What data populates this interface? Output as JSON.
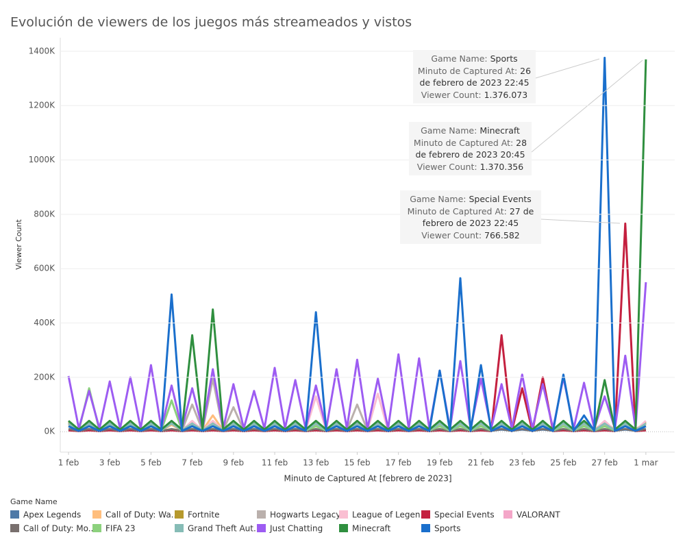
{
  "chart_data": {
    "type": "line",
    "title": "Evolución de viewers de los juegos más streameados y vistos",
    "x_label": "Minuto de Captured At [febrero de 2023]",
    "y_label": "Viewer Count",
    "legend_title": "Game Name",
    "xlim": [
      0.6,
      30.4
    ],
    "xticks": [
      {
        "value": 1,
        "label": "1 feb"
      },
      {
        "value": 3,
        "label": "3 feb"
      },
      {
        "value": 5,
        "label": "5 feb"
      },
      {
        "value": 7,
        "label": "7 feb"
      },
      {
        "value": 9,
        "label": "9 feb"
      },
      {
        "value": 11,
        "label": "11 feb"
      },
      {
        "value": 13,
        "label": "13 feb"
      },
      {
        "value": 15,
        "label": "15 feb"
      },
      {
        "value": 17,
        "label": "17 feb"
      },
      {
        "value": 19,
        "label": "19 feb"
      },
      {
        "value": 21,
        "label": "21 feb"
      },
      {
        "value": 23,
        "label": "23 feb"
      },
      {
        "value": 25,
        "label": "25 feb"
      },
      {
        "value": 27,
        "label": "27 feb"
      },
      {
        "value": 29,
        "label": "1 mar"
      }
    ],
    "ylim": [
      -75,
      1450
    ],
    "yticks": [
      {
        "value": 0,
        "label": "0K"
      },
      {
        "value": 200,
        "label": "200K"
      },
      {
        "value": 400,
        "label": "400K"
      },
      {
        "value": 600,
        "label": "600K"
      },
      {
        "value": 800,
        "label": "800K"
      },
      {
        "value": 1000,
        "label": "1000K"
      },
      {
        "value": 1200,
        "label": "1200K"
      },
      {
        "value": 1400,
        "label": "1400K"
      }
    ],
    "grid": true,
    "x": [
      1,
      1.5,
      2,
      2.5,
      3,
      3.5,
      4,
      4.5,
      5,
      5.5,
      6,
      6.5,
      7,
      7.5,
      8,
      8.5,
      9,
      9.5,
      10,
      10.5,
      11,
      11.5,
      12,
      12.5,
      13,
      13.5,
      14,
      14.5,
      15,
      15.5,
      16,
      16.5,
      17,
      17.5,
      18,
      18.5,
      19,
      19.5,
      20,
      20.5,
      21,
      21.5,
      22,
      22.5,
      23,
      23.5,
      24,
      24.5,
      25,
      25.5,
      26,
      26.5,
      27,
      27.5,
      28,
      28.5,
      29
    ],
    "series": [
      {
        "name": "Apex Legends",
        "color": "#4e79a7",
        "values": [
          8,
          4,
          8,
          4,
          8,
          4,
          8,
          4,
          8,
          4,
          8,
          4,
          8,
          4,
          8,
          4,
          8,
          4,
          8,
          4,
          8,
          4,
          8,
          4,
          8,
          4,
          8,
          4,
          8,
          4,
          8,
          4,
          8,
          4,
          8,
          4,
          8,
          4,
          8,
          4,
          8,
          4,
          8,
          4,
          8,
          4,
          8,
          4,
          8,
          4,
          8,
          4,
          8,
          4,
          8,
          4,
          8
        ]
      },
      {
        "name": "Call of Duty: Wa..",
        "color": "#ffbe7d",
        "values": [
          25,
          5,
          25,
          5,
          25,
          5,
          25,
          5,
          25,
          5,
          25,
          5,
          25,
          5,
          60,
          5,
          25,
          5,
          25,
          5,
          25,
          5,
          25,
          5,
          25,
          5,
          25,
          5,
          25,
          5,
          25,
          5,
          25,
          5,
          25,
          5,
          25,
          5,
          25,
          5,
          25,
          5,
          25,
          5,
          25,
          5,
          25,
          5,
          25,
          5,
          25,
          5,
          25,
          5,
          25,
          5,
          25
        ]
      },
      {
        "name": "Fortnite",
        "color": "#b6992d",
        "values": [
          35,
          8,
          35,
          8,
          35,
          8,
          35,
          8,
          35,
          8,
          35,
          8,
          35,
          8,
          35,
          8,
          35,
          8,
          35,
          8,
          35,
          8,
          35,
          8,
          35,
          8,
          35,
          8,
          35,
          8,
          35,
          8,
          35,
          8,
          35,
          8,
          35,
          8,
          35,
          8,
          35,
          8,
          35,
          8,
          35,
          8,
          35,
          8,
          35,
          8,
          35,
          8,
          35,
          8,
          35,
          8,
          35
        ]
      },
      {
        "name": "Hogwarts Legacy",
        "color": "#bab0ac",
        "values": [
          30,
          5,
          30,
          5,
          30,
          5,
          30,
          5,
          30,
          5,
          30,
          5,
          100,
          5,
          195,
          5,
          90,
          5,
          30,
          5,
          30,
          5,
          30,
          5,
          30,
          5,
          30,
          5,
          100,
          5,
          30,
          5,
          30,
          5,
          30,
          5,
          30,
          5,
          30,
          5,
          30,
          5,
          30,
          5,
          30,
          5,
          30,
          5,
          30,
          5,
          30,
          5,
          30,
          5,
          30,
          5,
          30
        ]
      },
      {
        "name": "League of Legen..",
        "color": "#fabfd2",
        "values": [
          40,
          5,
          40,
          5,
          40,
          5,
          40,
          5,
          40,
          5,
          40,
          5,
          40,
          5,
          40,
          5,
          40,
          5,
          40,
          5,
          40,
          5,
          40,
          5,
          130,
          5,
          40,
          5,
          40,
          5,
          140,
          5,
          40,
          5,
          40,
          5,
          40,
          5,
          40,
          5,
          40,
          5,
          40,
          5,
          40,
          5,
          40,
          5,
          40,
          5,
          40,
          5,
          40,
          5,
          40,
          5,
          40
        ]
      },
      {
        "name": "Special Events",
        "color": "#c4203f",
        "values": [
          5,
          2,
          5,
          2,
          5,
          2,
          5,
          2,
          5,
          2,
          5,
          2,
          5,
          2,
          5,
          2,
          5,
          2,
          5,
          2,
          5,
          2,
          5,
          2,
          5,
          2,
          5,
          2,
          5,
          2,
          5,
          2,
          5,
          2,
          5,
          2,
          5,
          2,
          5,
          2,
          5,
          2,
          355,
          2,
          160,
          2,
          200,
          2,
          5,
          2,
          5,
          2,
          5,
          2,
          766,
          2,
          5
        ]
      },
      {
        "name": "VALORANT",
        "color": "#f4a6c8",
        "values": [
          30,
          5,
          30,
          5,
          30,
          5,
          30,
          5,
          30,
          5,
          30,
          5,
          30,
          5,
          30,
          5,
          30,
          5,
          30,
          5,
          30,
          5,
          30,
          5,
          30,
          5,
          30,
          5,
          30,
          5,
          30,
          5,
          30,
          5,
          30,
          5,
          30,
          5,
          30,
          5,
          30,
          5,
          30,
          5,
          30,
          5,
          30,
          5,
          30,
          5,
          30,
          5,
          30,
          5,
          30,
          5,
          30
        ]
      },
      {
        "name": "Call of Duty: Mo..",
        "color": "#79706e",
        "values": [
          10,
          3,
          10,
          3,
          10,
          3,
          10,
          3,
          10,
          3,
          10,
          3,
          10,
          3,
          10,
          3,
          10,
          3,
          10,
          3,
          10,
          3,
          10,
          3,
          10,
          3,
          10,
          3,
          10,
          3,
          10,
          3,
          10,
          3,
          10,
          3,
          10,
          3,
          10,
          3,
          10,
          3,
          10,
          3,
          10,
          3,
          10,
          3,
          10,
          3,
          10,
          3,
          10,
          3,
          10,
          3,
          10
        ]
      },
      {
        "name": "FIFA 23",
        "color": "#8cd17d",
        "values": [
          20,
          5,
          160,
          5,
          20,
          5,
          20,
          5,
          20,
          5,
          115,
          5,
          20,
          5,
          20,
          5,
          20,
          5,
          20,
          5,
          20,
          5,
          20,
          5,
          20,
          5,
          20,
          5,
          20,
          5,
          20,
          5,
          20,
          5,
          20,
          5,
          20,
          5,
          20,
          5,
          20,
          5,
          20,
          5,
          20,
          5,
          20,
          5,
          20,
          5,
          20,
          5,
          20,
          5,
          20,
          5,
          20
        ]
      },
      {
        "name": "Grand Theft Aut..",
        "color": "#86bcb6",
        "values": [
          30,
          5,
          30,
          5,
          30,
          5,
          30,
          5,
          30,
          5,
          30,
          5,
          30,
          5,
          30,
          5,
          30,
          5,
          30,
          5,
          30,
          5,
          30,
          5,
          30,
          5,
          30,
          5,
          30,
          5,
          30,
          5,
          30,
          5,
          30,
          5,
          30,
          5,
          30,
          5,
          30,
          5,
          30,
          5,
          30,
          5,
          30,
          5,
          30,
          5,
          30,
          5,
          30,
          5,
          30,
          5,
          30
        ]
      },
      {
        "name": "Just Chatting",
        "color": "#9d5cf2",
        "values": [
          205,
          12,
          150,
          12,
          185,
          12,
          200,
          12,
          245,
          12,
          170,
          12,
          160,
          12,
          230,
          12,
          175,
          12,
          150,
          12,
          235,
          12,
          190,
          12,
          170,
          12,
          230,
          12,
          265,
          12,
          195,
          12,
          285,
          12,
          270,
          12,
          225,
          12,
          260,
          12,
          195,
          12,
          175,
          12,
          210,
          12,
          175,
          12,
          200,
          12,
          180,
          12,
          130,
          12,
          280,
          12,
          550
        ]
      },
      {
        "name": "Minecraft",
        "color": "#2f8f3f",
        "values": [
          40,
          8,
          40,
          8,
          40,
          8,
          40,
          8,
          40,
          8,
          40,
          8,
          355,
          8,
          450,
          8,
          40,
          8,
          40,
          8,
          40,
          8,
          40,
          8,
          40,
          8,
          40,
          8,
          40,
          8,
          40,
          8,
          40,
          8,
          40,
          8,
          40,
          8,
          40,
          8,
          40,
          8,
          40,
          8,
          40,
          8,
          40,
          8,
          40,
          8,
          40,
          8,
          190,
          8,
          40,
          8,
          1370
        ]
      },
      {
        "name": "Sports",
        "color": "#1a6fcc",
        "values": [
          20,
          3,
          20,
          3,
          20,
          3,
          20,
          3,
          20,
          3,
          505,
          3,
          20,
          3,
          20,
          3,
          20,
          3,
          20,
          3,
          20,
          3,
          20,
          3,
          440,
          3,
          20,
          3,
          20,
          3,
          20,
          3,
          20,
          3,
          20,
          3,
          225,
          3,
          565,
          3,
          245,
          3,
          20,
          3,
          20,
          3,
          20,
          3,
          210,
          3,
          60,
          3,
          1376,
          3,
          20,
          3,
          20
        ]
      }
    ],
    "annotations": [
      {
        "rows": [
          [
            {
              "label": "Game Name: "
            },
            {
              "value": "Sports"
            }
          ],
          [
            {
              "label": "Minuto de Captured At: "
            },
            {
              "value": "26"
            }
          ],
          [
            {
              "value": "de febrero de 2023 22:45"
            }
          ],
          [
            {
              "label": "Viewer Count: "
            },
            {
              "value": "1.376.073"
            }
          ]
        ]
      },
      {
        "rows": [
          [
            {
              "label": "Game Name: "
            },
            {
              "value": "Minecraft"
            }
          ],
          [
            {
              "label": "Minuto de Captured At: "
            },
            {
              "value": "28"
            }
          ],
          [
            {
              "value": "de febrero de 2023 20:45"
            }
          ],
          [
            {
              "label": "Viewer Count: "
            },
            {
              "value": "1.370.356"
            }
          ]
        ]
      },
      {
        "rows": [
          [
            {
              "label": "Game Name: "
            },
            {
              "value": "Special Events"
            }
          ],
          [
            {
              "label": "Minuto de Captured At: "
            },
            {
              "value": "27 de"
            }
          ],
          [
            {
              "value": "febrero de 2023 22:45"
            }
          ],
          [
            {
              "label": "Viewer Count: "
            },
            {
              "value": "766.582"
            }
          ]
        ]
      }
    ]
  }
}
